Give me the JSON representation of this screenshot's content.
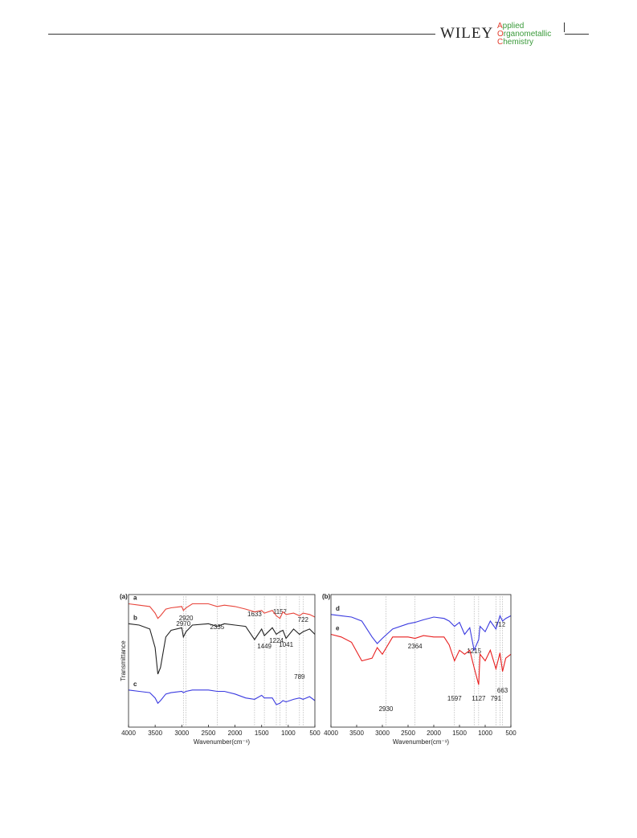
{
  "header": {
    "publisher": "WILEY",
    "journal": [
      "Applied",
      "Organometallic",
      "Chemistry"
    ]
  },
  "chart_data": [
    {
      "type": "line",
      "label": "(a)",
      "xlabel": "Wavenumber(cm⁻¹)",
      "ylabel": "Transmittance",
      "xlim": [
        4000,
        500
      ],
      "ylim": [
        0,
        100
      ],
      "xticks": [
        4000,
        3500,
        3000,
        2500,
        2000,
        1500,
        1000,
        500
      ],
      "x": [
        4000,
        3800,
        3600,
        3500,
        3450,
        3400,
        3300,
        3200,
        3000,
        2970,
        2920,
        2800,
        2500,
        2335,
        2200,
        2000,
        1800,
        1633,
        1500,
        1449,
        1300,
        1224,
        1157,
        1100,
        1041,
        900,
        789,
        722,
        600,
        500
      ],
      "series": [
        {
          "name": "a",
          "color": "#e8443a",
          "values": [
            93,
            92,
            91,
            86,
            82,
            84,
            89,
            90,
            91,
            88,
            90,
            93,
            93,
            91,
            92,
            91,
            89,
            87,
            88,
            86,
            88,
            84,
            82,
            87,
            85,
            86,
            84,
            86,
            85,
            83
          ]
        },
        {
          "name": "b",
          "color": "#222222",
          "values": [
            78,
            77,
            74,
            60,
            40,
            45,
            68,
            73,
            75,
            68,
            72,
            77,
            78,
            76,
            78,
            77,
            76,
            66,
            74,
            69,
            75,
            70,
            72,
            73,
            67,
            74,
            70,
            72,
            74,
            70
          ]
        },
        {
          "name": "c",
          "color": "#3a3ae0",
          "values": [
            28,
            27,
            26,
            22,
            18,
            20,
            25,
            26,
            27,
            26,
            27,
            28,
            28,
            27,
            27,
            25,
            22,
            21,
            24,
            22,
            22,
            17,
            18,
            20,
            19,
            21,
            22,
            21,
            23,
            20
          ]
        }
      ],
      "peaks": [
        2970,
        2920,
        2335,
        1633,
        1449,
        1224,
        1157,
        1041,
        789,
        722
      ]
    },
    {
      "type": "line",
      "label": "(b)",
      "xlabel": "Wavenumber(cm⁻¹)",
      "xlim": [
        4000,
        500
      ],
      "ylim": [
        0,
        100
      ],
      "xticks": [
        4000,
        3500,
        3000,
        2500,
        2000,
        1500,
        1000,
        500
      ],
      "x": [
        4000,
        3800,
        3600,
        3400,
        3200,
        3100,
        3000,
        2800,
        2500,
        2364,
        2200,
        2000,
        1800,
        1700,
        1597,
        1500,
        1400,
        1300,
        1215,
        1127,
        1100,
        1000,
        900,
        791,
        712,
        663,
        600,
        500
      ],
      "series": [
        {
          "name": "d",
          "color": "#3a3ae0",
          "values": [
            85,
            84,
            83,
            80,
            68,
            63,
            67,
            74,
            78,
            79,
            81,
            83,
            82,
            80,
            76,
            79,
            70,
            75,
            58,
            66,
            76,
            72,
            80,
            74,
            84,
            80,
            82,
            84
          ]
        },
        {
          "name": "e",
          "color": "#e81f1f",
          "values": [
            70,
            68,
            64,
            50,
            52,
            60,
            55,
            68,
            68,
            67,
            69,
            68,
            68,
            62,
            50,
            58,
            55,
            58,
            45,
            32,
            55,
            50,
            58,
            44,
            56,
            42,
            52,
            55
          ]
        }
      ],
      "peaks": [
        2364,
        1215,
        712,
        1597,
        1127,
        791,
        663,
        2930
      ]
    }
  ]
}
